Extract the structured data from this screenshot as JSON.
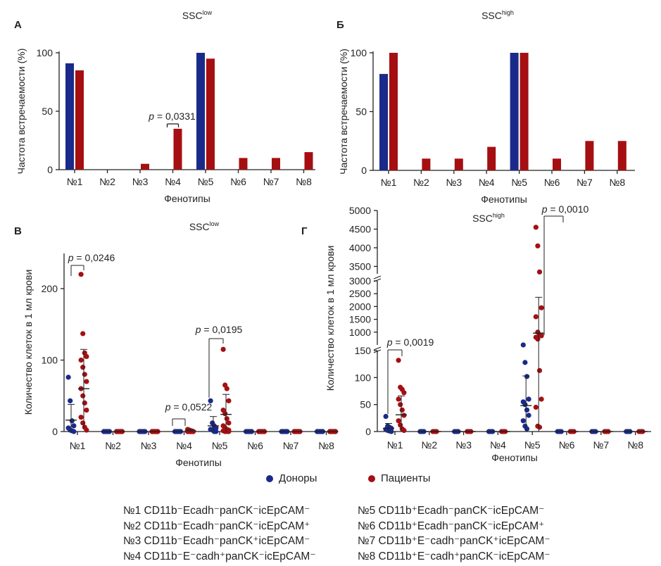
{
  "colors": {
    "donors": "#1a2a8a",
    "patients": "#a50f12"
  },
  "legend": {
    "donors": "Доноры",
    "patients": "Пациенты"
  },
  "key": {
    "left": [
      "№1 CD11b⁻Ecadh⁻panCK⁻icEpCAM⁻",
      "№2 CD11b⁻Ecadh⁻panCK⁻icEpCAM⁺",
      "№3 CD11b⁻Ecadh⁻panCK⁺icEpCAM⁻",
      "№4 CD11b⁻E⁻cadh⁺panCK⁻icEpCAM⁻"
    ],
    "right": [
      "№5 CD11b⁺Ecadh⁻panCK⁻icEpCAM⁻",
      "№6 CD11b⁺Ecadh⁻panCK⁻icEpCAM⁺",
      "№7 CD11b⁺E⁻cadh⁻panCK⁺icEpCAM⁻",
      "№8 CD11b⁺E⁻cadh⁺panCK⁻icEpCAM⁻"
    ]
  },
  "chart_data": [
    {
      "panel": "А",
      "type": "bar",
      "title_base": "SSC",
      "title_sup": "low",
      "xlabel": "Фенотипы",
      "ylabel": "Частота встречаемости (%)",
      "ylim": [
        0,
        100
      ],
      "yticks": [
        0,
        50,
        100
      ],
      "categories": [
        "№1",
        "№2",
        "№3",
        "№4",
        "№5",
        "№6",
        "№7",
        "№8"
      ],
      "series": [
        {
          "name": "Доноры",
          "values": [
            91,
            0,
            0,
            0,
            100,
            0,
            0,
            0
          ]
        },
        {
          "name": "Пациенты",
          "values": [
            85,
            0,
            5,
            35,
            95,
            10,
            10,
            15
          ]
        }
      ],
      "annotations": [
        {
          "category": "№4",
          "text": "p = 0,0331"
        }
      ]
    },
    {
      "panel": "Б",
      "type": "bar",
      "title_base": "SSC",
      "title_sup": "high",
      "xlabel": "Фенотипы",
      "ylabel": "Частота встречаемости (%)",
      "ylim": [
        0,
        100
      ],
      "yticks": [
        0,
        50,
        100
      ],
      "categories": [
        "№1",
        "№2",
        "№3",
        "№4",
        "№5",
        "№6",
        "№7",
        "№8"
      ],
      "series": [
        {
          "name": "Доноры",
          "values": [
            82,
            0,
            0,
            0,
            100,
            0,
            0,
            0
          ]
        },
        {
          "name": "Пациенты",
          "values": [
            100,
            10,
            10,
            20,
            100,
            10,
            25,
            25
          ]
        }
      ]
    },
    {
      "panel": "В",
      "type": "scatter",
      "title_base": "SSC",
      "title_sup": "low",
      "xlabel": "Фенотипы",
      "ylabel": "Количество клеток в 1 мл крови",
      "ylim": [
        0,
        250
      ],
      "yticks": [
        0,
        100,
        200
      ],
      "categories": [
        "№1",
        "№2",
        "№3",
        "№4",
        "№5",
        "№6",
        "№7",
        "№8"
      ],
      "series": [
        {
          "name": "Доноры",
          "points": [
            [
              76,
              0,
              0,
              0,
              43,
              0,
              0,
              0
            ],
            [
              43,
              0,
              0,
              0,
              12,
              0,
              0,
              0
            ],
            [
              15,
              0,
              0,
              0,
              8,
              0,
              0,
              0
            ],
            [
              8,
              0,
              0,
              0,
              5,
              0,
              0,
              0
            ],
            [
              5,
              0,
              0,
              0,
              3,
              0,
              0,
              0
            ],
            [
              2,
              0,
              0,
              0,
              2,
              0,
              0,
              0
            ],
            [
              1,
              0,
              0,
              0,
              0,
              0,
              0,
              0
            ],
            [
              0,
              0,
              0,
              0,
              0,
              0,
              0,
              0
            ]
          ],
          "mean": [
            16,
            0,
            0,
            0,
            8,
            0,
            0,
            0
          ],
          "sd": [
            22,
            0,
            0,
            0,
            13,
            0,
            0,
            0
          ]
        },
        {
          "name": "Пациенты",
          "points": [
            [
              220,
              0,
              0,
              0,
              115,
              0,
              0,
              0
            ],
            [
              137,
              0,
              0,
              0,
              65,
              0,
              0,
              0
            ],
            [
              110,
              0,
              0,
              0,
              60,
              0,
              0,
              0
            ],
            [
              105,
              0,
              0,
              0,
              43,
              0,
              0,
              0
            ],
            [
              100,
              0,
              0,
              3,
              30,
              0,
              0,
              0
            ],
            [
              90,
              0,
              0,
              2,
              25,
              0,
              0,
              0
            ],
            [
              80,
              0,
              0,
              1,
              18,
              0,
              0,
              0
            ],
            [
              70,
              0,
              0,
              0,
              12,
              0,
              0,
              0
            ],
            [
              60,
              0,
              0,
              0,
              8,
              0,
              0,
              0
            ],
            [
              50,
              0,
              0,
              0,
              5,
              0,
              0,
              0
            ],
            [
              40,
              0,
              0,
              0,
              3,
              0,
              0,
              0
            ],
            [
              30,
              0,
              0,
              0,
              2,
              0,
              0,
              0
            ],
            [
              20,
              0,
              0,
              0,
              1,
              0,
              0,
              0
            ],
            [
              12,
              0,
              0,
              0,
              0,
              0,
              0,
              0
            ],
            [
              6,
              0,
              0,
              0,
              0,
              0,
              0,
              0
            ],
            [
              2,
              0,
              0,
              0,
              0,
              0,
              0,
              0
            ]
          ],
          "mean": [
            60,
            0,
            0,
            1,
            24,
            0,
            0,
            0
          ],
          "sd": [
            55,
            0,
            0,
            2,
            28,
            0,
            0,
            0
          ]
        }
      ],
      "annotations": [
        {
          "category": "№1",
          "text": "p = 0,0246"
        },
        {
          "category": "№4",
          "text": "p = 0,0522"
        },
        {
          "category": "№5",
          "text": "p = 0,0195"
        }
      ]
    },
    {
      "panel": "Г",
      "type": "scatter",
      "title_base": "SSC",
      "title_sup": "high",
      "xlabel": "Фенотипы",
      "ylabel": "Количество клеток в 1 мл крови",
      "y_axis_segments": [
        {
          "range": [
            0,
            150
          ],
          "ticks": [
            0,
            50,
            100,
            150
          ]
        },
        {
          "range": [
            500,
            3000
          ],
          "ticks": [
            1000,
            1500,
            2000,
            2500,
            3000
          ]
        },
        {
          "range": [
            3300,
            5000
          ],
          "ticks": [
            3500,
            4000,
            4500,
            5000
          ]
        }
      ],
      "categories": [
        "№1",
        "№2",
        "№3",
        "№4",
        "№5",
        "№6",
        "№7",
        "№8"
      ],
      "series": [
        {
          "name": "Доноры",
          "donor_values": {
            "№1": [
              28,
              10,
              8,
              6,
              4,
              2,
              1,
              0
            ],
            "№5": [
              168,
              128,
              102,
              60,
              55,
              50,
              40,
              30,
              20,
              10,
              5
            ]
          },
          "mean": {
            "№1": 6,
            "№5": 48
          },
          "sd": {
            "№1": 9,
            "№5": 55
          }
        },
        {
          "name": "Пациенты",
          "patient_values": {
            "№1": [
              132,
              82,
              78,
              72,
              60,
              50,
              40,
              30,
              20,
              12,
              5,
              2
            ],
            "№5": [
              4550,
              4050,
              3350,
              1950,
              1600,
              1000,
              900,
              860,
              800,
              730,
              113,
              60,
              45,
              10,
              8
            ]
          },
          "mean": {
            "№1": 31,
            "№5": 960
          },
          "sd": {
            "№1": 35,
            "№5": 1400
          }
        }
      ],
      "annotations": [
        {
          "category": "№1",
          "text": "p = 0,0019"
        },
        {
          "category": "№5",
          "text": "p = 0,0010"
        }
      ]
    }
  ]
}
